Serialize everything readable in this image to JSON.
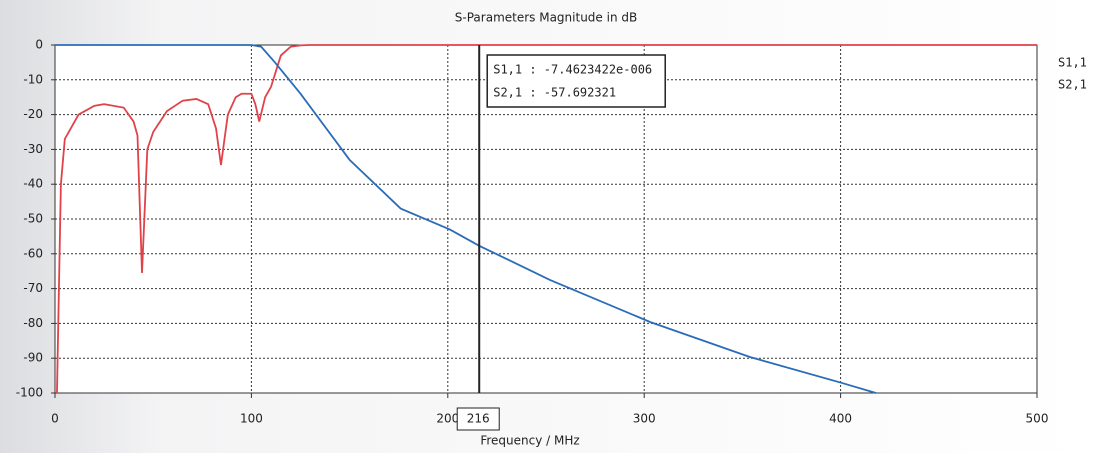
{
  "chart_data": {
    "type": "line",
    "title": "S-Parameters Magnitude in dB",
    "x_label": "Frequency / MHz",
    "xlim": [
      0,
      500
    ],
    "xticks": [
      0,
      100,
      200,
      300,
      400,
      500
    ],
    "ylim": [
      -100,
      0
    ],
    "yticks": [
      0,
      -10,
      -20,
      -30,
      -40,
      -50,
      -60,
      -70,
      -80,
      -90,
      -100
    ],
    "grid": true,
    "series": [
      {
        "name": "S1,1",
        "color": "#e0424a",
        "x": [
          1,
          3,
          5,
          12,
          20,
          25,
          35,
          40,
          42,
          44.3,
          47,
          50,
          57,
          65,
          72,
          78,
          82,
          84.5,
          88,
          92,
          95,
          100,
          102,
          104,
          107,
          110,
          115,
          120,
          125,
          130,
          200,
          300,
          400,
          500
        ],
        "values": [
          -100,
          -40,
          -27,
          -20,
          -17.5,
          -17,
          -18,
          -22,
          -26,
          -65.5,
          -30,
          -25,
          -19,
          -16,
          -15.5,
          -17,
          -24,
          -34.5,
          -20,
          -15,
          -14,
          -14,
          -17,
          -22,
          -15,
          -12,
          -3,
          -0.5,
          -0.1,
          0,
          0,
          0,
          0,
          0
        ]
      },
      {
        "name": "S2,1",
        "color": "#2b6cb8",
        "x": [
          0,
          50,
          100,
          105,
          112,
          125,
          150,
          176,
          201,
          216,
          252,
          303,
          354,
          400,
          418
        ],
        "values": [
          0,
          0,
          0,
          -0.5,
          -5,
          -14,
          -33,
          -47,
          -53,
          -57.692321,
          -67.5,
          -79.6,
          -89.7,
          -97,
          -100
        ]
      }
    ],
    "marker": {
      "x": 216,
      "labels": [
        "S1,1 : -7.4623422e-006",
        "S2,1 : -57.692321"
      ]
    }
  }
}
